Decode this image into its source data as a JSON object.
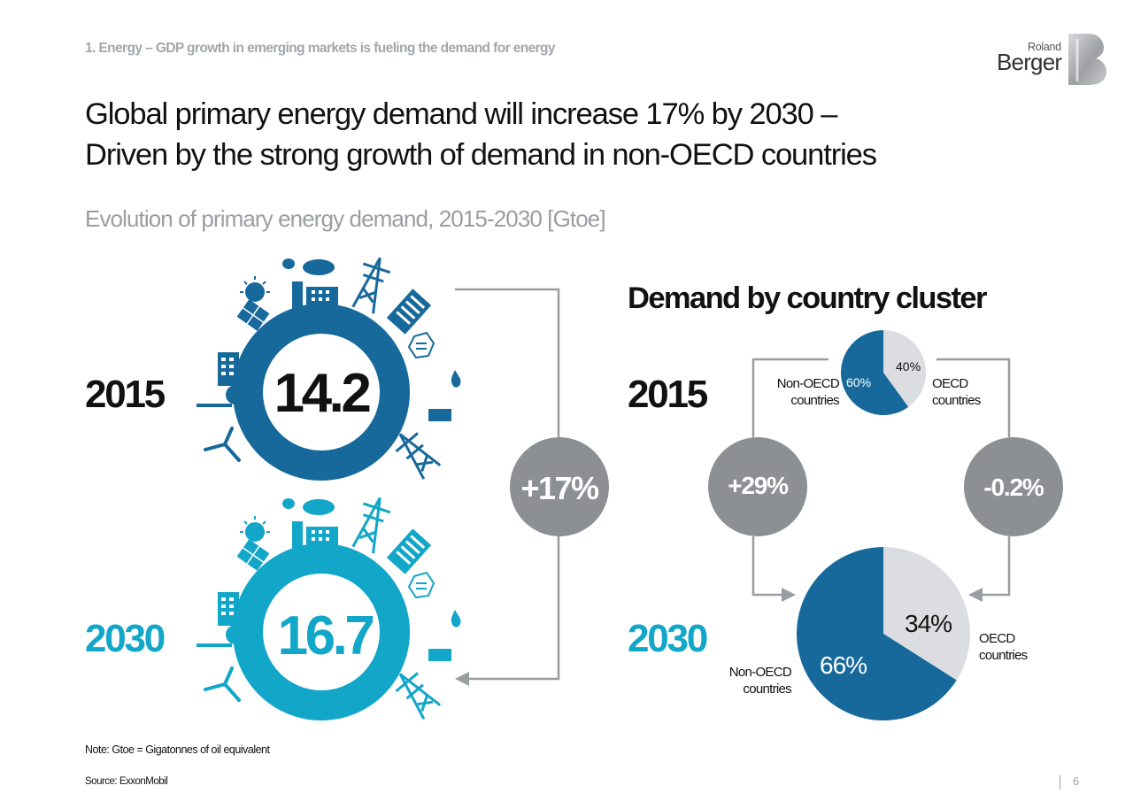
{
  "header": {
    "section_label": "1. Energy – GDP growth in emerging markets is fueling the demand for energy",
    "headline_line1": "Global primary energy demand will increase 17% by 2030 –",
    "headline_line2": "Driven by the strong growth of demand in non-OECD countries",
    "subtitle": "Evolution of primary energy demand, 2015-2030 [Gtoe]"
  },
  "logo": {
    "line1": "Roland",
    "line2": "Berger"
  },
  "colors": {
    "dark_blue": "#17699c",
    "cyan": "#12a6c8",
    "light_grey": "#dcdde0",
    "bubble_grey": "#8c8f93",
    "connector_grey": "#999ca0"
  },
  "icons": [
    "sun-icon",
    "solar-panel-icon",
    "factory-icon",
    "power-pylon-icon",
    "building-icon",
    "wind-turbine-icon",
    "oil-drop-icon"
  ],
  "cluster_title": "Demand by country cluster",
  "labels": {
    "non_oecd_line1": "Non-OECD",
    "non_oecd_line2": "countries",
    "oecd_line1": "OECD",
    "oecd_line2": "countries"
  },
  "chart_data": [
    {
      "type": "bar",
      "categories": [
        "2015",
        "2030"
      ],
      "values": [
        14.2,
        16.7
      ],
      "value_labels": [
        "14.2",
        "16.7"
      ],
      "change_label": "+17%",
      "change_percent": 17
    },
    {
      "type": "pie",
      "year": "2015",
      "slices": [
        {
          "name": "OECD countries",
          "value": 40,
          "label": "40%"
        },
        {
          "name": "Non-OECD countries",
          "value": 60,
          "label": "60%"
        }
      ]
    },
    {
      "type": "pie",
      "year": "2030",
      "slices": [
        {
          "name": "OECD countries",
          "value": 34,
          "label": "34%"
        },
        {
          "name": "Non-OECD countries",
          "value": 66,
          "label": "66%"
        }
      ]
    },
    {
      "type": "table",
      "growth_2015_2030": [
        {
          "name": "Non-OECD countries",
          "label": "+29%",
          "value": 29
        },
        {
          "name": "OECD countries",
          "label": "-0.2%",
          "value": -0.2
        }
      ]
    }
  ],
  "footer": {
    "note": "Note: Gtoe = Gigatonnes of oil equivalent",
    "source": "Source: ExxonMobil",
    "page": "6"
  }
}
